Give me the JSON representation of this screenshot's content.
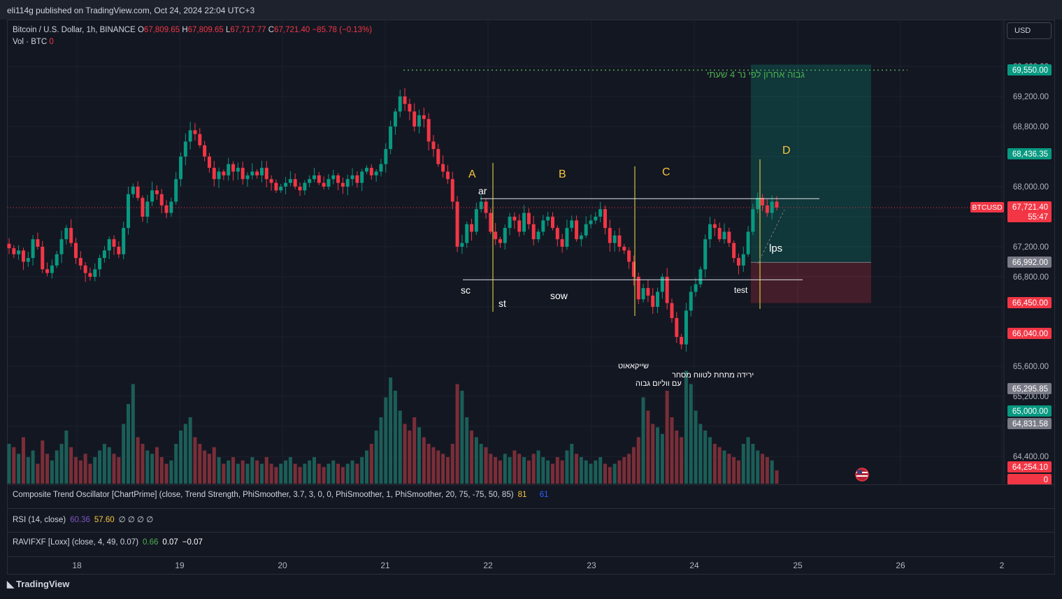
{
  "publish_line": "eli114g published on TradingView.com, Oct 24, 2024 22:04 UTC+3",
  "legend": {
    "symbol": "Bitcoin / U.S. Dollar, 1h, BINANCE",
    "o_label": "O",
    "o_val": "67,809.65",
    "h_label": "H",
    "h_val": "67,809.65",
    "l_label": "L",
    "l_val": "67,717.77",
    "c_label": "C",
    "c_val": "67,721.40",
    "change": "−85.78 (−0.13%)",
    "vol_label": "Vol · BTC",
    "vol_val": "0"
  },
  "currency_button": "USD",
  "price_axis": {
    "ticks": [
      "69,600.00",
      "69,200.00",
      "68,800.00",
      "68,000.00",
      "67,200.00",
      "66,800.00",
      "65,600.00",
      "65,200.00",
      "64,400.00"
    ],
    "tags": [
      {
        "text": "69,550.00",
        "color": "#089981"
      },
      {
        "text": "68,436.35",
        "color": "#089981"
      },
      {
        "text": "67,721.40",
        "color": "#f23645"
      },
      {
        "text": "55:47",
        "color": "#f23645"
      },
      {
        "text": "66,992.00",
        "color": "#787b86"
      },
      {
        "text": "66,450.00",
        "color": "#f23645"
      },
      {
        "text": "66,040.00",
        "color": "#f23645"
      },
      {
        "text": "65,295.85",
        "color": "#787b86"
      },
      {
        "text": "65,000.00",
        "color": "#089981"
      },
      {
        "text": "64,831.58",
        "color": "#787b86"
      },
      {
        "text": "64,254.10",
        "color": "#f23645"
      },
      {
        "text": "0",
        "color": "#f23645"
      }
    ],
    "symbol_tag": "BTCUSD"
  },
  "annotations": {
    "phase_a": "A",
    "phase_b": "B",
    "phase_c": "C",
    "phase_d": "D",
    "ar": "ar",
    "sc": "sc",
    "st": "st",
    "sow": "sow",
    "test": "test",
    "lps": "lps",
    "hebrew_top": "גבוה אחרון לפי נר 4 שעתי",
    "hebrew_shakeout_1": "שייקאאוט",
    "hebrew_shakeout_2": "ירידה מתחת לטווח מסחר",
    "hebrew_shakeout_3": "עם ווליום גבוה"
  },
  "indicators": {
    "cto": {
      "label": "Composite Trend Oscillator [ChartPrime] (close, Trend Strength, PhiSmoother, 3.7, 3, 0, 0, PhiSmoother, 1, PhiSmoother, 20, 75, -75, 50, 85)",
      "v1": "81",
      "v2": "0",
      "v3": "61"
    },
    "rsi": {
      "label": "RSI (14, close)",
      "v1": "60.36",
      "v2": "57.60",
      "v3": "∅ ∅ ∅ ∅"
    },
    "ravi": {
      "label": "RAVIFXF [Loxx] (close, 4, 49, 0.07)",
      "v1": "0.66",
      "v2": "0.07",
      "v3": "−0.07"
    }
  },
  "time_axis": [
    "18",
    "19",
    "20",
    "21",
    "22",
    "23",
    "24",
    "25",
    "26",
    "2"
  ],
  "footer_brand": "TradingView",
  "chart_data": {
    "type": "candlestick",
    "timeframe": "1h",
    "x_range": [
      "Oct 17",
      "Oct 25"
    ],
    "ylim": [
      64250,
      69700
    ],
    "closes": [
      67180,
      67100,
      67150,
      67000,
      67050,
      67300,
      67200,
      66900,
      66850,
      66950,
      67100,
      67300,
      67450,
      67250,
      67050,
      66950,
      66850,
      66800,
      66900,
      67050,
      67150,
      67300,
      67200,
      67100,
      67450,
      67900,
      68000,
      67850,
      67600,
      67800,
      67950,
      67900,
      67750,
      67650,
      67800,
      68100,
      68400,
      68600,
      68750,
      68700,
      68550,
      68400,
      68250,
      68100,
      68200,
      68150,
      68300,
      68200,
      68250,
      68100,
      68150,
      68200,
      68150,
      68250,
      68100,
      68050,
      67950,
      68000,
      68050,
      68100,
      68000,
      67950,
      68050,
      68100,
      68150,
      68050,
      68000,
      68100,
      68150,
      68050,
      68000,
      68100,
      68150,
      68050,
      68200,
      68250,
      68150,
      68200,
      68300,
      68500,
      68800,
      69000,
      69200,
      69100,
      69000,
      68800,
      68950,
      68900,
      68600,
      68500,
      68300,
      68200,
      68100,
      67800,
      67200,
      67250,
      67500,
      67400,
      67700,
      67800,
      67650,
      67400,
      67300,
      67250,
      67450,
      67600,
      67550,
      67400,
      67650,
      67500,
      67300,
      67400,
      67550,
      67600,
      67450,
      67300,
      67200,
      67450,
      67550,
      67300,
      67350,
      67500,
      67550,
      67600,
      67700,
      67450,
      67250,
      67350,
      67200,
      67150,
      67000,
      66800,
      66500,
      66650,
      66550,
      66400,
      66600,
      66800,
      66450,
      66250,
      66000,
      65900,
      66350,
      66600,
      66700,
      66900,
      67300,
      67500,
      67450,
      67300,
      67400,
      67250,
      67050,
      66950,
      67100,
      67400,
      67700,
      67850,
      67750,
      67650,
      67800,
      67721.4
    ],
    "last_price": 67721.4,
    "horizontal_levels": [
      {
        "name": "last high (4h)",
        "value": 69550
      },
      {
        "name": "ar / range top",
        "value": 67840
      },
      {
        "name": "sc / range bottom",
        "value": 66760
      }
    ],
    "long_position": {
      "entry": 66992,
      "target": 69550,
      "stop": 66450
    },
    "volume": [
      60,
      55,
      45,
      70,
      40,
      50,
      30,
      65,
      45,
      35,
      50,
      60,
      80,
      55,
      40,
      35,
      45,
      30,
      40,
      50,
      60,
      55,
      45,
      40,
      90,
      120,
      150,
      70,
      60,
      50,
      45,
      55,
      40,
      30,
      35,
      60,
      80,
      90,
      100,
      70,
      60,
      50,
      45,
      55,
      40,
      30,
      35,
      40,
      30,
      35,
      30,
      40,
      35,
      30,
      40,
      30,
      25,
      30,
      35,
      40,
      30,
      25,
      30,
      35,
      40,
      30,
      25,
      30,
      35,
      30,
      25,
      30,
      35,
      30,
      40,
      50,
      60,
      80,
      100,
      130,
      160,
      140,
      110,
      90,
      80,
      100,
      85,
      70,
      60,
      55,
      50,
      45,
      40,
      60,
      150,
      140,
      100,
      80,
      70,
      60,
      55,
      45,
      40,
      35,
      45,
      40,
      50,
      45,
      40,
      35,
      45,
      50,
      40,
      35,
      30,
      40,
      35,
      50,
      60,
      45,
      40,
      35,
      30,
      35,
      40,
      30,
      25,
      30,
      35,
      40,
      45,
      55,
      70,
      130,
      110,
      90,
      85,
      75,
      140,
      100,
      80,
      70,
      170,
      150,
      110,
      90,
      80,
      70,
      60,
      55,
      50,
      45,
      40,
      35,
      60,
      70,
      60,
      50,
      45,
      40,
      35,
      20
    ]
  }
}
